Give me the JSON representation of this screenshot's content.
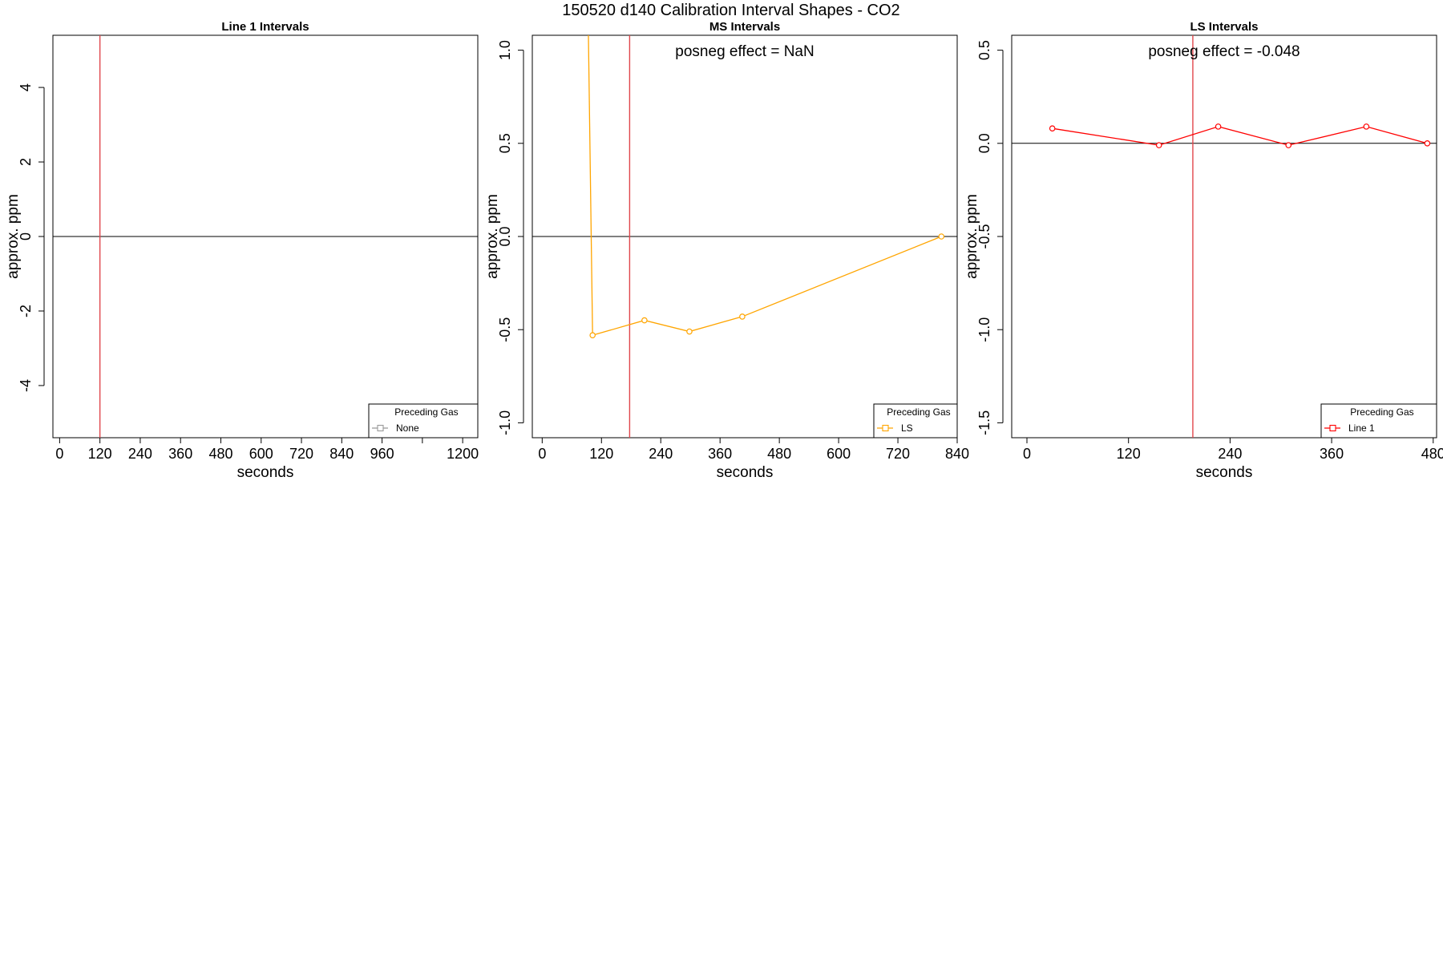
{
  "figure_title": "150520  d140   Calibration Interval Shapes - CO2",
  "chart_data": [
    {
      "type": "line",
      "title": "Line 1 Intervals",
      "xlabel": "seconds",
      "ylabel": "approx. ppm",
      "xlim": [
        -20,
        1245
      ],
      "ylim": [
        -5.4,
        5.4
      ],
      "xticks": [
        0,
        120,
        240,
        360,
        480,
        600,
        720,
        840,
        960,
        1080,
        1200
      ],
      "xtick_labels": [
        "0",
        "120",
        "240",
        "360",
        "480",
        "600",
        "720",
        "840",
        "960",
        "",
        "1200"
      ],
      "yticks": [
        -4,
        -2,
        0,
        2,
        4
      ],
      "ytick_labels": [
        "-4",
        "-2",
        "0",
        "2",
        "4"
      ],
      "hline": 0,
      "vline": 120,
      "annotation": "",
      "grid": false,
      "legend": {
        "title": "Preceding Gas",
        "position": "bottom-right",
        "entries": [
          {
            "label": "None",
            "color": "#999999"
          }
        ]
      },
      "series": [
        {
          "name": "None",
          "color": "#999999",
          "x": [],
          "y": []
        }
      ]
    },
    {
      "type": "line",
      "title": "MS Intervals",
      "xlabel": "seconds",
      "ylabel": "approx. ppm",
      "xlim": [
        -20,
        840
      ],
      "ylim": [
        -1.08,
        1.08
      ],
      "xticks": [
        0,
        120,
        240,
        360,
        480,
        600,
        720,
        840
      ],
      "xtick_labels": [
        "0",
        "120",
        "240",
        "360",
        "480",
        "600",
        "720",
        "840"
      ],
      "yticks": [
        -1.0,
        -0.5,
        0.0,
        0.5,
        1.0
      ],
      "ytick_labels": [
        "-1.0",
        "-0.5",
        "0.0",
        "0.5",
        "1.0"
      ],
      "hline": 0,
      "vline": 177,
      "annotation": "posneg effect = NaN",
      "grid": false,
      "legend": {
        "title": "Preceding Gas",
        "position": "bottom-right",
        "entries": [
          {
            "label": "LS",
            "color": "#FFA500"
          }
        ]
      },
      "series": [
        {
          "name": "LS",
          "color": "#FFA500",
          "lead_in": {
            "x": [
              73,
              102
            ],
            "y": [
              5.0,
              -0.53
            ]
          },
          "x": [
            102,
            207,
            298,
            405,
            808
          ],
          "y": [
            -0.53,
            -0.45,
            -0.51,
            -0.43,
            0.0
          ]
        }
      ]
    },
    {
      "type": "line",
      "title": "LS Intervals",
      "xlabel": "seconds",
      "ylabel": "approx. ppm",
      "xlim": [
        -18,
        484
      ],
      "ylim": [
        -1.58,
        0.58
      ],
      "xticks": [
        0,
        120,
        240,
        360,
        480
      ],
      "xtick_labels": [
        "0",
        "120",
        "240",
        "360",
        "480"
      ],
      "yticks": [
        -1.5,
        -1.0,
        -0.5,
        0.0,
        0.5
      ],
      "ytick_labels": [
        "-1.5",
        "-1.0",
        "-0.5",
        "0.0",
        "0.5"
      ],
      "hline": 0,
      "vline": 196,
      "annotation": "posneg effect = -0.048",
      "grid": false,
      "legend": {
        "title": "Preceding Gas",
        "position": "bottom-right",
        "entries": [
          {
            "label": "Line 1",
            "color": "#FF0000"
          }
        ]
      },
      "series": [
        {
          "name": "Line 1",
          "color": "#FF0000",
          "x": [
            30,
            156,
            226,
            309,
            401,
            473
          ],
          "y": [
            0.08,
            -0.01,
            0.09,
            -0.01,
            0.09,
            0.0
          ]
        }
      ]
    }
  ]
}
